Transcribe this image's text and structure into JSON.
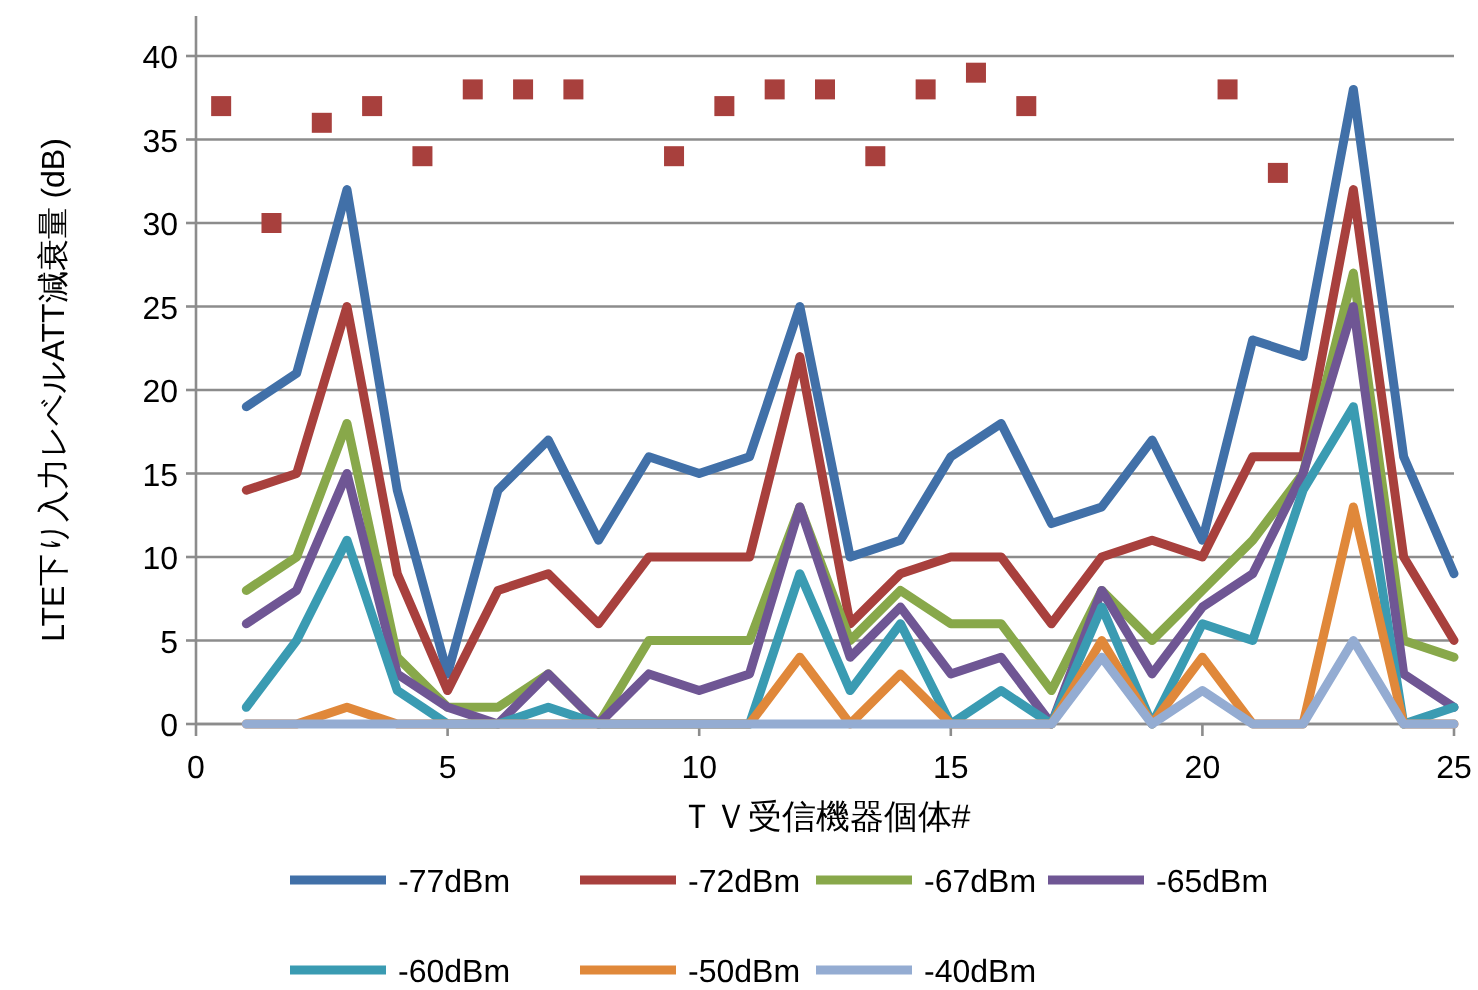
{
  "chart_data": {
    "type": "line",
    "xlabel": "ＴＶ受信機器個体#",
    "ylabel": "LTE下り入力レベルATT減衰量 (dB)",
    "xlim": [
      0,
      25
    ],
    "xticks": [
      0,
      5,
      10,
      15,
      20,
      25
    ],
    "ylim": [
      0,
      40
    ],
    "yticks": [
      0,
      5,
      10,
      15,
      20,
      25,
      30,
      35,
      40
    ],
    "grid": "y",
    "legend": "bottom",
    "x": [
      1,
      2,
      3,
      4,
      5,
      6,
      7,
      8,
      9,
      10,
      11,
      12,
      13,
      14,
      15,
      16,
      17,
      18,
      19,
      20,
      21,
      22,
      23,
      24,
      25
    ],
    "series": [
      {
        "name": "-77dBm",
        "color": "#4170a8",
        "values": [
          19,
          21,
          32,
          14,
          3,
          14,
          17,
          11,
          16,
          15,
          16,
          25,
          10,
          11,
          16,
          18,
          12,
          13,
          17,
          11,
          23,
          22,
          38,
          16,
          9
        ]
      },
      {
        "name": "-72dBm",
        "color": "#a8403d",
        "values": [
          14,
          15,
          25,
          9,
          2,
          8,
          9,
          6,
          10,
          10,
          10,
          22,
          6,
          9,
          10,
          10,
          6,
          10,
          11,
          10,
          16,
          16,
          32,
          10,
          5
        ]
      },
      {
        "name": "-67dBm",
        "color": "#88a84a",
        "values": [
          8,
          10,
          18,
          4,
          1,
          1,
          3,
          0,
          5,
          5,
          5,
          13,
          5,
          8,
          6,
          6,
          2,
          8,
          5,
          8,
          11,
          15,
          27,
          5,
          4
        ]
      },
      {
        "name": "-65dBm",
        "color": "#6f5694",
        "values": [
          6,
          8,
          15,
          3,
          1,
          0,
          3,
          0,
          3,
          2,
          3,
          13,
          4,
          7,
          3,
          4,
          0,
          8,
          3,
          7,
          9,
          15,
          25,
          3,
          1
        ]
      },
      {
        "name": "-60dBm",
        "color": "#3a9bb2",
        "values": [
          1,
          5,
          11,
          2,
          0,
          0,
          1,
          0,
          0,
          0,
          0,
          9,
          2,
          6,
          0,
          2,
          0,
          7,
          0,
          6,
          5,
          14,
          19,
          0,
          1
        ]
      },
      {
        "name": "-50dBm",
        "color": "#e0883a",
        "values": [
          0,
          0,
          1,
          0,
          0,
          0,
          0,
          0,
          0,
          0,
          0,
          4,
          0,
          3,
          0,
          0,
          0,
          5,
          0,
          4,
          0,
          0,
          13,
          0,
          0
        ]
      },
      {
        "name": "-40dBm",
        "color": "#94acd2",
        "values": [
          0,
          0,
          0,
          0,
          0,
          0,
          0,
          0,
          0,
          0,
          0,
          0,
          0,
          0,
          0,
          0,
          0,
          4,
          0,
          2,
          0,
          0,
          5,
          0,
          0
        ]
      },
      {
        "type": "scatter",
        "color": "#a8403d",
        "marker": "square",
        "x": [
          0.5,
          1.5,
          2.5,
          3.5,
          4.5,
          5.5,
          6.5,
          7.5,
          9.5,
          10.5,
          11.5,
          12.5,
          13.5,
          14.5,
          15.5,
          16.5,
          20.5,
          21.5
        ],
        "values": [
          37,
          30,
          36,
          37,
          34,
          38,
          38,
          38,
          34,
          37,
          38,
          38,
          34,
          38,
          39,
          37,
          38,
          33
        ]
      }
    ]
  }
}
